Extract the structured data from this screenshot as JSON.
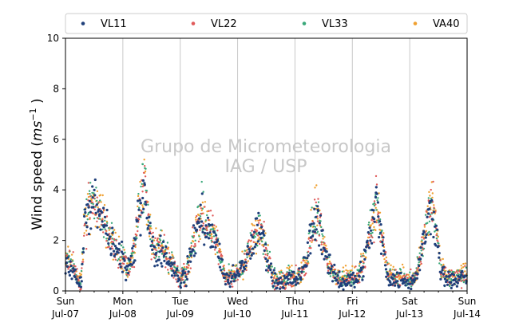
{
  "chart_data": {
    "type": "scatter",
    "ylabel_main": "Wind speed (",
    "ylabel_unit_base": "ms",
    "ylabel_unit_exp": "−1",
    "ylabel_close": " )",
    "ylim": [
      0,
      10
    ],
    "yticks": [
      0,
      2,
      4,
      6,
      8,
      10
    ],
    "xlim": [
      0,
      7
    ],
    "grid": "vertical",
    "legend_position": "top",
    "watermark_line1": "Grupo de Micrometeorologia",
    "watermark_line2": "IAG / USP",
    "x_ticks": [
      {
        "day": "Sun",
        "date": "Jul-07"
      },
      {
        "day": "Mon",
        "date": "Jul-08"
      },
      {
        "day": "Tue",
        "date": "Jul-09"
      },
      {
        "day": "Wed",
        "date": "Jul-10"
      },
      {
        "day": "Thu",
        "date": "Jul-11"
      },
      {
        "day": "Fri",
        "date": "Jul-12"
      },
      {
        "day": "Sat",
        "date": "Jul-13"
      },
      {
        "day": "Sun",
        "date": "Jul-14"
      }
    ],
    "series": [
      {
        "name": "VL11",
        "color": "#1f3f7a"
      },
      {
        "name": "VL22",
        "color": "#e05a5a"
      },
      {
        "name": "VL33",
        "color": "#3aa87a"
      },
      {
        "name": "VA40",
        "color": "#f0a030"
      }
    ],
    "profile_x_days": [
      0,
      0.12,
      0.2,
      0.27,
      0.33,
      0.4,
      0.5,
      0.62,
      0.72,
      0.82,
      0.92,
      1.0,
      1.1,
      1.2,
      1.28,
      1.38,
      1.45,
      1.55,
      1.65,
      1.78,
      1.9,
      2.0,
      2.1,
      2.2,
      2.28,
      2.38,
      2.45,
      2.55,
      2.65,
      2.78,
      2.9,
      3.0,
      3.1,
      3.2,
      3.3,
      3.42,
      3.5,
      3.62,
      3.72,
      3.82,
      3.9,
      4.0,
      4.1,
      4.2,
      4.28,
      4.38,
      4.45,
      4.55,
      4.65,
      4.78,
      4.9,
      5.0,
      5.1,
      5.2,
      5.3,
      5.42,
      5.5,
      5.62,
      5.7,
      5.82,
      5.9,
      6.0,
      6.1,
      6.2,
      6.28,
      6.38,
      6.45,
      6.55,
      6.65,
      6.8,
      7.0
    ],
    "profile_y_ms": [
      1.2,
      1.1,
      0.5,
      0.3,
      2.5,
      3.2,
      3.4,
      3.0,
      2.4,
      1.9,
      1.5,
      1.3,
      0.9,
      1.5,
      3.5,
      4.4,
      2.5,
      1.6,
      1.8,
      1.3,
      0.9,
      0.5,
      0.7,
      1.6,
      2.5,
      3.1,
      2.5,
      2.3,
      1.8,
      0.5,
      0.6,
      0.7,
      1.0,
      1.6,
      2.3,
      2.5,
      1.5,
      0.5,
      0.4,
      0.4,
      0.6,
      0.5,
      0.7,
      1.2,
      2.4,
      3.2,
      2.6,
      1.3,
      0.7,
      0.5,
      0.5,
      0.5,
      0.6,
      1.2,
      2.2,
      3.6,
      2.2,
      0.7,
      0.5,
      0.5,
      0.5,
      0.4,
      0.5,
      1.5,
      2.5,
      3.5,
      2.6,
      0.8,
      0.5,
      0.5,
      0.6
    ]
  }
}
